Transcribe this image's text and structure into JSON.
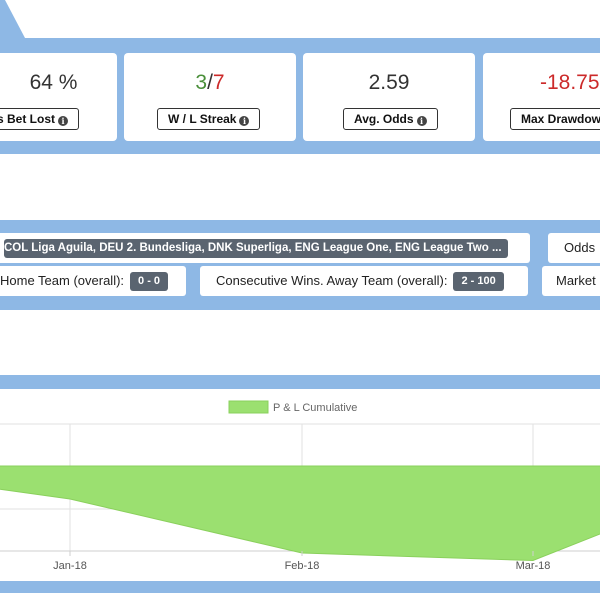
{
  "stats": {
    "pct_bet_lost": {
      "value": "64 %",
      "label": "s Bet Lost"
    },
    "streak": {
      "wins": "3",
      "separator": "/",
      "losses": "7",
      "label": "W / L Streak"
    },
    "avg_odds": {
      "value": "2.59",
      "label": "Avg. Odds"
    },
    "max_drawdown": {
      "value": "-18.75",
      "label": "Max Drawdow"
    },
    "icon": "info-icon"
  },
  "filters": {
    "leagues": "COL Liga Aguila, DEU 2. Bundesliga, DNK Superliga, ENG League One, ENG League Two ...",
    "odds_label": "Odds",
    "home_team_label": "Home Team (overall):",
    "home_team_value": "0 - 0",
    "away_team_label": "Consecutive Wins. Away Team (overall):",
    "away_team_value": "2 - 100",
    "market_label": "Market"
  },
  "chart_data": {
    "type": "area",
    "legend": [
      "P & L Cumulative"
    ],
    "legend_position": "top-center",
    "x": [
      "Jan-18",
      "Feb-18",
      "Mar-18"
    ],
    "series": [
      {
        "name": "P & L Cumulative",
        "color": "#9be070",
        "values": [
          -2.2,
          -5.8,
          -6.3
        ]
      }
    ],
    "start_value": -1.5,
    "baseline": 0,
    "grid": true
  }
}
